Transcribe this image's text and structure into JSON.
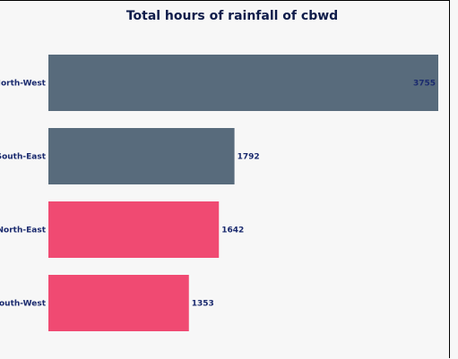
{
  "chart_data": {
    "type": "bar",
    "orientation": "horizontal",
    "title": "Total hours of rainfall of cbwd",
    "categories": [
      "North-West",
      "South-East",
      "North-East",
      "South-West"
    ],
    "values": [
      3755,
      1792,
      1642,
      1353
    ],
    "value_labels": [
      "3755",
      "1792",
      "1642",
      "1353"
    ],
    "bar_colors": [
      "#586b7c",
      "#586b7c",
      "#f04a72",
      "#f04a72"
    ],
    "xlim": [
      0,
      3755
    ],
    "grid": false,
    "legend": "none"
  },
  "colors": {
    "background": "#f7f7f7",
    "text": "#1a2a6e",
    "title": "#0f1c4a"
  }
}
